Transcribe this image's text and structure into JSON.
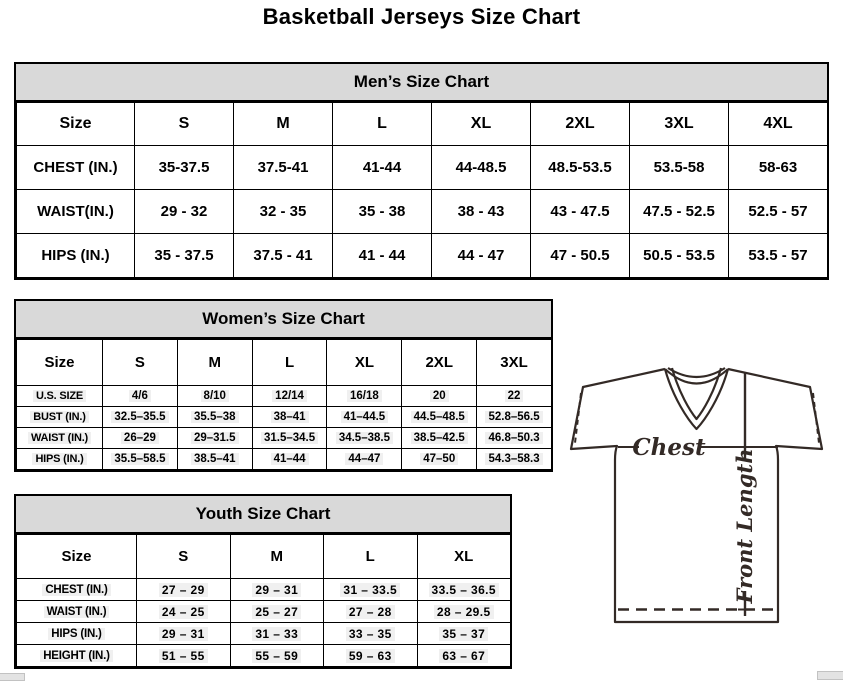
{
  "page_title": "Basketball Jerseys Size Chart",
  "mens": {
    "title": "Men’s Size Chart",
    "columns": [
      "Size",
      "S",
      "M",
      "L",
      "XL",
      "2XL",
      "3XL",
      "4XL"
    ],
    "rows": [
      {
        "label": "CHEST (IN.)",
        "values": [
          "35-37.5",
          "37.5-41",
          "41-44",
          "44-48.5",
          "48.5-53.5",
          "53.5-58",
          "58-63"
        ]
      },
      {
        "label": "WAIST(IN.)",
        "values": [
          "29 - 32",
          "32 - 35",
          "35 - 38",
          "38 - 43",
          "43 - 47.5",
          "47.5 - 52.5",
          "52.5 - 57"
        ]
      },
      {
        "label": "HIPS (IN.)",
        "values": [
          "35 - 37.5",
          "37.5 - 41",
          "41 - 44",
          "44 - 47",
          "47 - 50.5",
          "50.5 - 53.5",
          "53.5 - 57"
        ]
      }
    ]
  },
  "womens": {
    "title": "Women’s Size Chart",
    "columns": [
      "Size",
      "S",
      "M",
      "L",
      "XL",
      "2XL",
      "3XL"
    ],
    "rows": [
      {
        "label": "U.S. SIZE",
        "values": [
          "4/6",
          "8/10",
          "12/14",
          "16/18",
          "20",
          "22"
        ]
      },
      {
        "label": "BUST (IN.)",
        "values": [
          "32.5–35.5",
          "35.5–38",
          "38–41",
          "41–44.5",
          "44.5–48.5",
          "52.8–56.5"
        ]
      },
      {
        "label": "WAIST (IN.)",
        "values": [
          "26–29",
          "29–31.5",
          "31.5–34.5",
          "34.5–38.5",
          "38.5–42.5",
          "46.8–50.3"
        ]
      },
      {
        "label": "HIPS (IN.)",
        "values": [
          "35.5–58.5",
          "38.5–41",
          "41–44",
          "44–47",
          "47–50",
          "54.3–58.3"
        ]
      }
    ]
  },
  "youth": {
    "title": "Youth Size Chart",
    "columns": [
      "Size",
      "S",
      "M",
      "L",
      "XL"
    ],
    "rows": [
      {
        "label": "CHEST (IN.)",
        "values": [
          "27 – 29",
          "29 – 31",
          "31 – 33.5",
          "33.5 – 36.5"
        ]
      },
      {
        "label": "WAIST (IN.)",
        "values": [
          "24 – 25",
          "25 – 27",
          "27 – 28",
          "28 – 29.5"
        ]
      },
      {
        "label": "HIPS (IN.)",
        "values": [
          "29 – 31",
          "31 – 33",
          "33 – 35",
          "35 – 37"
        ]
      },
      {
        "label": "HEIGHT (IN.)",
        "values": [
          "51 – 55",
          "55 – 59",
          "59 – 63",
          "63 – 67"
        ]
      }
    ]
  },
  "diagram": {
    "chest_label": "Chest",
    "front_length_label": "Front Length"
  },
  "colors": {
    "section_header_bg": "#d9d9d9",
    "table_border": "#000000",
    "jersey_line": "#332a26",
    "cell_highlight": "#f0f0f0"
  }
}
